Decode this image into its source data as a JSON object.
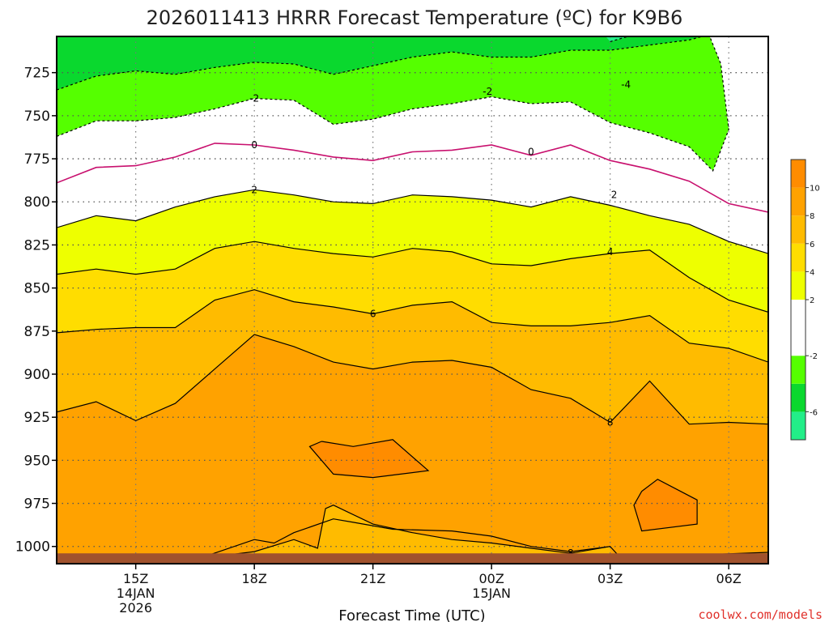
{
  "chart_data": {
    "type": "heatmap",
    "title": "2026011413 HRRR Forecast Temperature (ºC) for K9B6",
    "xlabel": "Forecast Time (UTC)",
    "ylabel": "",
    "credit": "coolwx.com/models",
    "y_axis": {
      "unit": "hPa",
      "range": [
        1010,
        704
      ],
      "ticks": [
        "725",
        "750",
        "775",
        "800",
        "825",
        "850",
        "875",
        "900",
        "925",
        "950",
        "975",
        "1000"
      ],
      "tick_values": [
        725,
        750,
        775,
        800,
        825,
        850,
        875,
        900,
        925,
        950,
        975,
        1000
      ]
    },
    "x_axis": {
      "range_hours": [
        -2,
        16
      ],
      "ticks": [
        {
          "hour": 0,
          "label": "15Z",
          "sub1": "14JAN",
          "sub2": "2026"
        },
        {
          "hour": 3,
          "label": "18Z",
          "sub1": "",
          "sub2": ""
        },
        {
          "hour": 6,
          "label": "21Z",
          "sub1": "",
          "sub2": ""
        },
        {
          "hour": 9,
          "label": "00Z",
          "sub1": "15JAN",
          "sub2": ""
        },
        {
          "hour": 12,
          "label": "03Z",
          "sub1": "",
          "sub2": ""
        },
        {
          "hour": 15,
          "label": "06Z",
          "sub1": "",
          "sub2": ""
        }
      ]
    },
    "grid": true,
    "colorbar": {
      "placement": "right",
      "bins": [
        {
          "lo": -8,
          "hi": -6,
          "color": "#22ee88"
        },
        {
          "lo": -6,
          "hi": -4,
          "color": "#0ad82e"
        },
        {
          "lo": -4,
          "hi": -2,
          "color": "#55ff00"
        },
        {
          "lo": -2,
          "hi": 2,
          "color": "#ffffff"
        },
        {
          "lo": 2,
          "hi": 4,
          "color": "#eeff00"
        },
        {
          "lo": 4,
          "hi": 6,
          "color": "#ffdd00"
        },
        {
          "lo": 6,
          "hi": 8,
          "color": "#ffbb00"
        },
        {
          "lo": 8,
          "hi": 10,
          "color": "#ffa200"
        },
        {
          "lo": 10,
          "hi": 12,
          "color": "#ff8c00"
        }
      ],
      "tick_labels": [
        "10",
        "8",
        "6",
        "4",
        "2",
        "-2",
        "-6"
      ],
      "tick_values": [
        10,
        8,
        6,
        4,
        2,
        -2,
        -6
      ]
    },
    "ground_color": "#a0522d",
    "contours": [
      {
        "level": -4,
        "style": "dashed",
        "labels": [
          {
            "hour": 12.4,
            "p": 732
          }
        ],
        "points": [
          [
            12.0,
            707
          ],
          [
            12.6,
            703
          ]
        ]
      },
      {
        "level": -2,
        "style": "dashed",
        "labels": [
          {
            "hour": 3.0,
            "p": 740
          },
          {
            "hour": 8.9,
            "p": 736
          }
        ],
        "points": [
          [
            -2,
            735
          ],
          [
            -1,
            727
          ],
          [
            0,
            724
          ],
          [
            1,
            726
          ],
          [
            2,
            722
          ],
          [
            3,
            719
          ],
          [
            4,
            720
          ],
          [
            5,
            726
          ],
          [
            6,
            721
          ],
          [
            7,
            716
          ],
          [
            8,
            713
          ],
          [
            9,
            716
          ],
          [
            10,
            716
          ],
          [
            11,
            712
          ],
          [
            12,
            712
          ],
          [
            13,
            709
          ],
          [
            14,
            706
          ],
          [
            14.5,
            703
          ]
        ]
      },
      {
        "level": -2,
        "style": "dashed",
        "labels": [],
        "points": [
          [
            -2,
            762
          ],
          [
            -1,
            753
          ],
          [
            0,
            753
          ],
          [
            1,
            751
          ],
          [
            2,
            746
          ],
          [
            3,
            740
          ],
          [
            4,
            741
          ],
          [
            5,
            755
          ],
          [
            6,
            752
          ],
          [
            7,
            746
          ],
          [
            8,
            743
          ],
          [
            9,
            739
          ],
          [
            10,
            743
          ],
          [
            11,
            742
          ],
          [
            12,
            754
          ],
          [
            13,
            760
          ],
          [
            14,
            768
          ],
          [
            14.6,
            782
          ],
          [
            15,
            758
          ],
          [
            14.8,
            720
          ],
          [
            14.5,
            703
          ]
        ]
      },
      {
        "level": 0,
        "style": "magenta",
        "labels": [
          {
            "hour": 3.0,
            "p": 767
          },
          {
            "hour": 10.0,
            "p": 771
          }
        ],
        "points": [
          [
            -2,
            789
          ],
          [
            -1,
            780
          ],
          [
            0,
            779
          ],
          [
            1,
            774
          ],
          [
            2,
            766
          ],
          [
            3,
            767
          ],
          [
            4,
            770
          ],
          [
            5,
            774
          ],
          [
            6,
            776
          ],
          [
            7,
            771
          ],
          [
            8,
            770
          ],
          [
            9,
            767
          ],
          [
            10,
            773
          ],
          [
            11,
            767
          ],
          [
            12,
            776
          ],
          [
            13,
            781
          ],
          [
            14,
            788
          ],
          [
            15,
            801
          ],
          [
            16,
            806
          ],
          [
            16.5,
            822
          ]
        ]
      },
      {
        "level": 2,
        "style": "solid",
        "labels": [
          {
            "hour": 3.0,
            "p": 793
          },
          {
            "hour": 12.1,
            "p": 796
          }
        ],
        "points": [
          [
            -2,
            815
          ],
          [
            -1,
            808
          ],
          [
            0,
            811
          ],
          [
            1,
            803
          ],
          [
            2,
            797
          ],
          [
            3,
            793
          ],
          [
            4,
            796
          ],
          [
            5,
            800
          ],
          [
            6,
            801
          ],
          [
            7,
            796
          ],
          [
            8,
            797
          ],
          [
            9,
            799
          ],
          [
            10,
            803
          ],
          [
            11,
            797
          ],
          [
            12,
            802
          ],
          [
            13,
            808
          ],
          [
            14,
            813
          ],
          [
            15,
            823
          ],
          [
            16,
            830
          ],
          [
            16.5,
            839
          ]
        ]
      },
      {
        "level": 4,
        "style": "solid",
        "labels": [
          {
            "hour": 12.0,
            "p": 829
          }
        ],
        "points": [
          [
            -2,
            842
          ],
          [
            -1,
            839
          ],
          [
            0,
            842
          ],
          [
            1,
            839
          ],
          [
            2,
            827
          ],
          [
            3,
            823
          ],
          [
            4,
            827
          ],
          [
            5,
            830
          ],
          [
            6,
            832
          ],
          [
            7,
            827
          ],
          [
            8,
            829
          ],
          [
            9,
            836
          ],
          [
            10,
            837
          ],
          [
            11,
            833
          ],
          [
            12,
            830
          ],
          [
            13,
            828
          ],
          [
            14,
            844
          ],
          [
            15,
            857
          ],
          [
            16,
            864
          ],
          [
            16.5,
            867
          ]
        ]
      },
      {
        "level": 6,
        "style": "solid",
        "labels": [
          {
            "hour": 6.0,
            "p": 865
          }
        ],
        "points": [
          [
            -2,
            876
          ],
          [
            -1,
            874
          ],
          [
            0,
            873
          ],
          [
            1,
            873
          ],
          [
            2,
            857
          ],
          [
            3,
            851
          ],
          [
            4,
            858
          ],
          [
            5,
            861
          ],
          [
            6,
            865
          ],
          [
            7,
            860
          ],
          [
            8,
            858
          ],
          [
            9,
            870
          ],
          [
            10,
            872
          ],
          [
            11,
            872
          ],
          [
            12,
            870
          ],
          [
            13,
            866
          ],
          [
            14,
            882
          ],
          [
            15,
            885
          ],
          [
            16,
            893
          ],
          [
            16.5,
            896
          ]
        ]
      },
      {
        "level": 8,
        "style": "solid",
        "labels": [
          {
            "hour": 12.0,
            "p": 928
          }
        ],
        "points": [
          [
            -2,
            922
          ],
          [
            -1,
            916
          ],
          [
            0,
            927
          ],
          [
            1,
            917
          ],
          [
            2,
            897
          ],
          [
            3,
            877
          ],
          [
            4,
            884
          ],
          [
            5,
            893
          ],
          [
            6,
            897
          ],
          [
            7,
            893
          ],
          [
            8,
            892
          ],
          [
            9,
            896
          ],
          [
            10,
            909
          ],
          [
            11,
            914
          ],
          [
            12,
            928
          ],
          [
            13,
            904
          ],
          [
            14,
            929
          ],
          [
            15,
            928
          ],
          [
            16,
            929
          ],
          [
            16.5,
            930
          ]
        ]
      },
      {
        "level": 10,
        "style": "solid",
        "labels": [],
        "points": [
          [
            4.7,
            939
          ],
          [
            5.5,
            942
          ],
          [
            6.5,
            938
          ],
          [
            7.4,
            956
          ],
          [
            6,
            960
          ],
          [
            5,
            958
          ],
          [
            4.4,
            942
          ],
          [
            4.7,
            939
          ]
        ]
      },
      {
        "level": 10,
        "style": "solid",
        "labels": [],
        "points": [
          [
            12.8,
            968
          ],
          [
            13.2,
            961
          ],
          [
            14.2,
            973
          ],
          [
            14.2,
            987
          ],
          [
            12.8,
            991
          ],
          [
            12.6,
            976
          ],
          [
            12.8,
            968
          ]
        ]
      },
      {
        "level": 8,
        "style": "solid",
        "labels": [
          {
            "hour": 11.0,
            "p": 1004
          }
        ],
        "points": [
          [
            1.6,
            1007
          ],
          [
            3,
            996
          ],
          [
            3.5,
            998
          ],
          [
            4,
            992
          ],
          [
            5,
            984
          ],
          [
            5.5,
            986
          ],
          [
            6.5,
            990
          ],
          [
            8,
            991
          ],
          [
            9,
            994
          ],
          [
            10,
            1000
          ],
          [
            11,
            1003
          ],
          [
            12,
            1000
          ],
          [
            12.2,
            1005
          ],
          [
            13,
            1006
          ],
          [
            16.5,
            1003
          ]
        ]
      },
      {
        "level": 8,
        "style": "solid",
        "labels": [],
        "points": [
          [
            1.6,
            1007
          ],
          [
            3,
            1003
          ],
          [
            4,
            996
          ],
          [
            4.6,
            1001
          ],
          [
            4.8,
            978
          ],
          [
            5,
            976
          ],
          [
            6,
            987
          ],
          [
            7,
            992
          ],
          [
            8,
            996
          ],
          [
            9,
            998
          ],
          [
            10,
            1001
          ],
          [
            11,
            1004
          ],
          [
            12,
            1000
          ]
        ]
      }
    ]
  }
}
